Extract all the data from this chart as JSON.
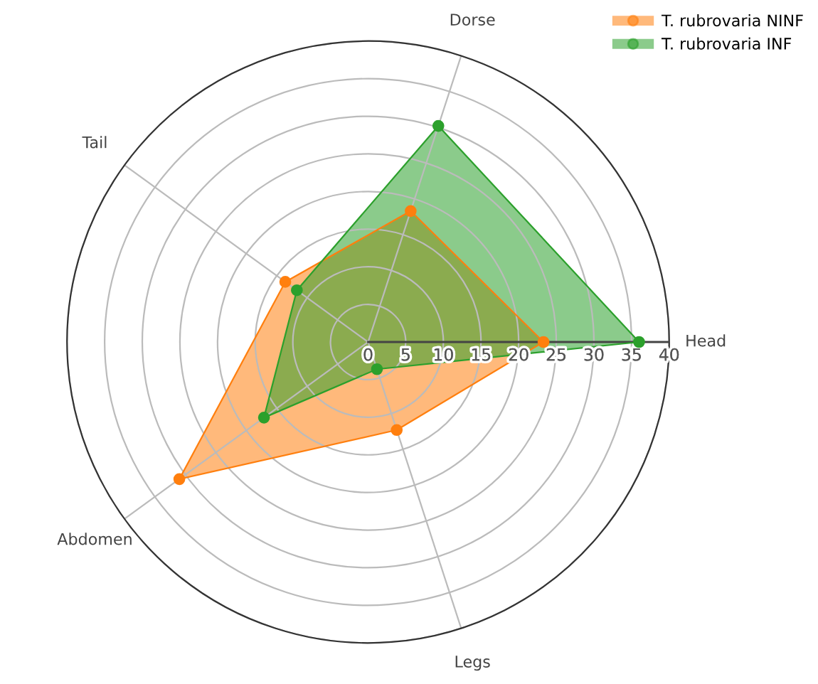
{
  "chart_data": {
    "type": "radar",
    "categories": [
      "Dorse",
      "Head",
      "Legs",
      "Abdomen",
      "Tail"
    ],
    "series": [
      {
        "name": "T. rubrovaria NINF",
        "color": "#ff7f0e",
        "values": [
          18.3,
          23.3,
          12.3,
          31,
          13.6
        ]
      },
      {
        "name": "T. rubrovaria INF",
        "color": "#2ca02c",
        "values": [
          30.2,
          36,
          3.8,
          17.1,
          11.7
        ]
      }
    ],
    "ylim": [
      0,
      40
    ],
    "yticks": [
      0,
      5,
      10,
      15,
      20,
      25,
      30,
      35,
      40
    ],
    "marker": "circle",
    "legend": "top right",
    "grid": true
  }
}
